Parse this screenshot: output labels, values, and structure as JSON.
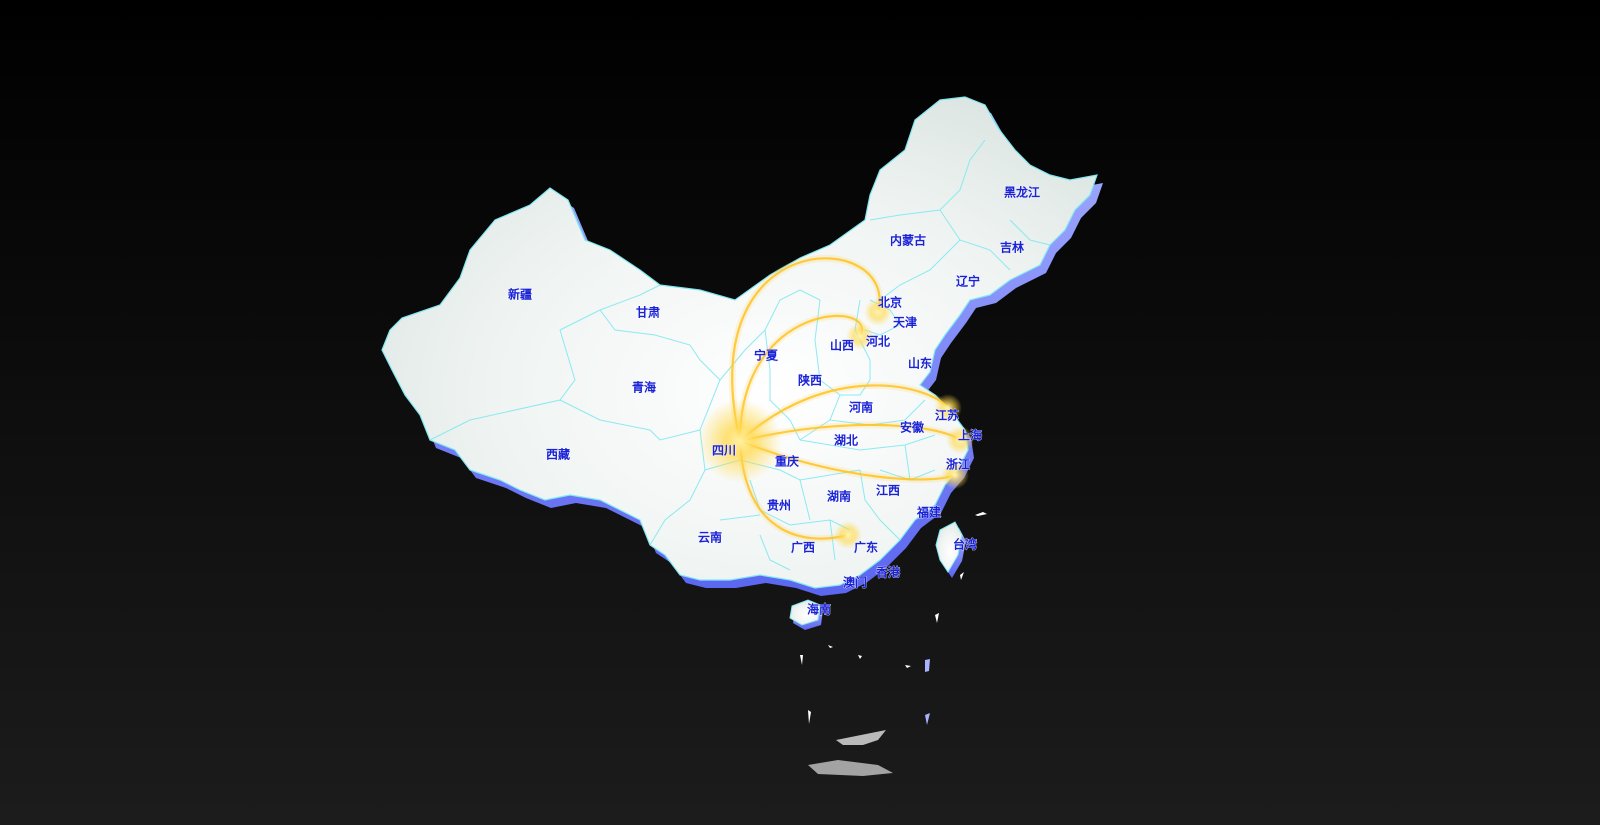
{
  "map": {
    "colors": {
      "background_top": "#000000",
      "background_bottom": "#1c1c1c",
      "land": "#eef3f1",
      "land_shade": "#dfe7e4",
      "extrusion_side": "#7a86ff",
      "boundary": "#7fe8f2",
      "label": "#1a22d6",
      "flow": "#ffc21f",
      "glow": "#ffd84a"
    },
    "origin": "四川",
    "provinces": [
      {
        "name": "黑龙江"
      },
      {
        "name": "吉林"
      },
      {
        "name": "辽宁"
      },
      {
        "name": "内蒙古"
      },
      {
        "name": "北京"
      },
      {
        "name": "天津"
      },
      {
        "name": "河北"
      },
      {
        "name": "山西"
      },
      {
        "name": "山东"
      },
      {
        "name": "新疆"
      },
      {
        "name": "甘肃"
      },
      {
        "name": "宁夏"
      },
      {
        "name": "青海"
      },
      {
        "name": "陕西"
      },
      {
        "name": "河南"
      },
      {
        "name": "江苏"
      },
      {
        "name": "安徽"
      },
      {
        "name": "上海"
      },
      {
        "name": "湖北"
      },
      {
        "name": "浙江"
      },
      {
        "name": "西藏"
      },
      {
        "name": "四川"
      },
      {
        "name": "重庆"
      },
      {
        "name": "贵州"
      },
      {
        "name": "湖南"
      },
      {
        "name": "江西"
      },
      {
        "name": "福建"
      },
      {
        "name": "台湾"
      },
      {
        "name": "云南"
      },
      {
        "name": "广西"
      },
      {
        "name": "广东"
      },
      {
        "name": "澳门"
      },
      {
        "name": "香港"
      },
      {
        "name": "海南"
      }
    ],
    "flows": [
      {
        "from": "四川",
        "to": "北京"
      },
      {
        "from": "四川",
        "to": "河北"
      },
      {
        "from": "四川",
        "to": "江苏"
      },
      {
        "from": "四川",
        "to": "上海"
      },
      {
        "from": "四川",
        "to": "浙江"
      },
      {
        "from": "四川",
        "to": "广东"
      }
    ]
  }
}
